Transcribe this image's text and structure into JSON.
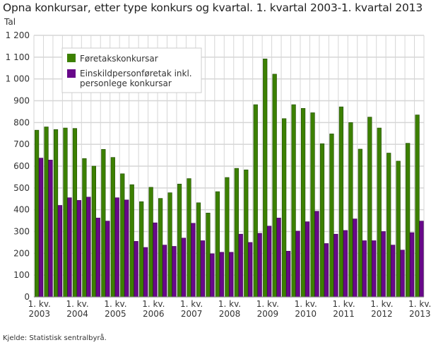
{
  "chart_data": {
    "type": "bar",
    "title": "Opna konkursar, etter type konkurs og kvartal. 1. kvartal 2003-1. kvartal 2013",
    "ylabel": "Tal",
    "xlabel": "",
    "ylim": [
      0,
      1200
    ],
    "yticks": [
      "0",
      "100",
      "200",
      "300",
      "400",
      "500",
      "600",
      "700",
      "800",
      "900",
      "1 000",
      "1 100",
      "1 200"
    ],
    "xtick_labels": [
      {
        "line1": "1. kv.",
        "line2": "2003",
        "index": 0
      },
      {
        "line1": "1. kv.",
        "line2": "2004",
        "index": 4
      },
      {
        "line1": "1. kv.",
        "line2": "2005",
        "index": 8
      },
      {
        "line1": "1. kv.",
        "line2": "2006",
        "index": 12
      },
      {
        "line1": "1. kv.",
        "line2": "2007",
        "index": 16
      },
      {
        "line1": "1. kv.",
        "line2": "2008",
        "index": 20
      },
      {
        "line1": "1. kv.",
        "line2": "2009",
        "index": 24
      },
      {
        "line1": "1. kv.",
        "line2": "2010",
        "index": 28
      },
      {
        "line1": "1. kv.",
        "line2": "2011",
        "index": 32
      },
      {
        "line1": "1. kv.",
        "line2": "2012",
        "index": 36
      },
      {
        "line1": "1. kv.",
        "line2": "2013",
        "index": 40
      }
    ],
    "grid": true,
    "legend_placement": "top-left",
    "series": [
      {
        "name": "Føretakskonkursar",
        "color": "#3c8000",
        "values": [
          765,
          780,
          768,
          775,
          773,
          635,
          600,
          677,
          640,
          565,
          515,
          437,
          503,
          452,
          478,
          518,
          543,
          432,
          385,
          483,
          548,
          590,
          583,
          882,
          1092,
          1022,
          818,
          882,
          865,
          845,
          703,
          748,
          872,
          800,
          678,
          825,
          775,
          660,
          623,
          705,
          835
        ]
      },
      {
        "name": "Einskildpersonføretak inkl. personlege konkursar",
        "name_lines": [
          "Einskildpersonføretak inkl.",
          "personlege konkursar"
        ],
        "color": "#68088a",
        "values": [
          637,
          628,
          420,
          455,
          443,
          458,
          362,
          348,
          455,
          445,
          255,
          227,
          340,
          238,
          232,
          270,
          338,
          258,
          198,
          205,
          205,
          288,
          250,
          292,
          325,
          362,
          210,
          302,
          345,
          393,
          245,
          288,
          305,
          358,
          258,
          258,
          300,
          238,
          215,
          295,
          348
        ]
      }
    ]
  },
  "source": "Kjelde: Statistisk sentralbyrå."
}
